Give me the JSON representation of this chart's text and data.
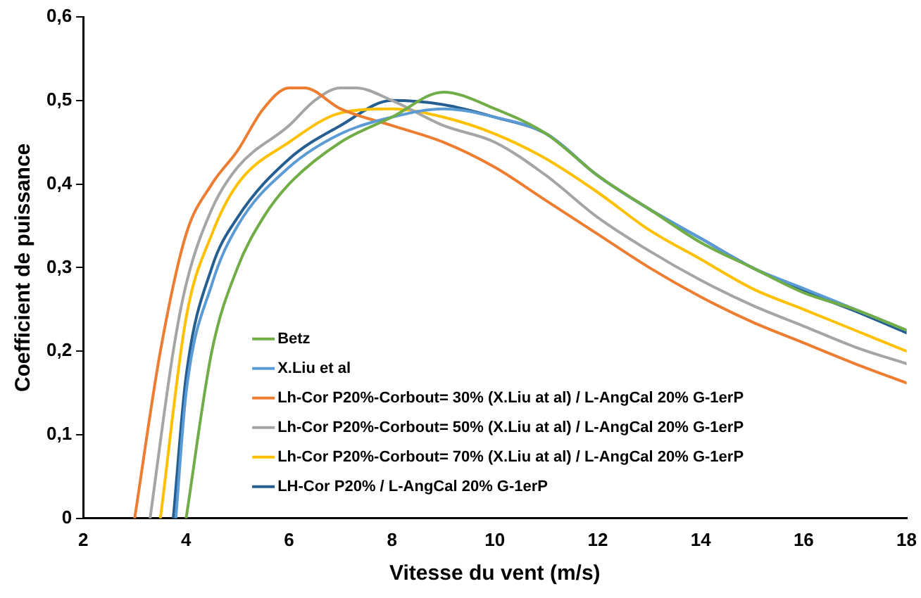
{
  "chart_data": {
    "type": "line",
    "xlabel": "Vitesse du vent (m/s)",
    "ylabel": "Coefficient de puissance",
    "xlim": [
      2,
      18
    ],
    "xticks": [
      2,
      4,
      6,
      8,
      10,
      12,
      14,
      16,
      18
    ],
    "ylim": [
      0,
      0.6
    ],
    "yticks": [
      {
        "value": 0,
        "label": "0"
      },
      {
        "value": 0.1,
        "label": "0,1"
      },
      {
        "value": 0.2,
        "label": "0,2"
      },
      {
        "value": 0.3,
        "label": "0,3"
      },
      {
        "value": 0.4,
        "label": "0,4"
      },
      {
        "value": 0.5,
        "label": "0,5"
      },
      {
        "value": 0.6,
        "label": "0,6"
      }
    ],
    "grid": false,
    "legend": "bottom",
    "marker": "none",
    "line_style": "solid",
    "series": [
      {
        "name": "Betz",
        "color": "#70ad47",
        "x": [
          4,
          4.5,
          5,
          5.5,
          6,
          7,
          8,
          9,
          10,
          11,
          12,
          13,
          14,
          15,
          16,
          17,
          18
        ],
        "values": [
          0,
          0.2,
          0.3,
          0.36,
          0.4,
          0.45,
          0.48,
          0.51,
          0.49,
          0.46,
          0.41,
          0.37,
          0.33,
          0.3,
          0.27,
          0.25,
          0.225
        ]
      },
      {
        "name": "X.Liu et al",
        "color": "#5b9bd5",
        "x": [
          3.8,
          4,
          4.5,
          5,
          6,
          7,
          8,
          9,
          10,
          11,
          12,
          13,
          14,
          15,
          16,
          17,
          18
        ],
        "values": [
          0,
          0.15,
          0.28,
          0.35,
          0.42,
          0.46,
          0.48,
          0.49,
          0.48,
          0.46,
          0.41,
          0.37,
          0.335,
          0.3,
          0.275,
          0.25,
          0.225
        ]
      },
      {
        "name": "Lh-Cor P20%-Corbout= 30% (X.Liu at al) / L-AngCal 20% G-1erP",
        "color": "#ed7d31",
        "x": [
          3,
          3.5,
          4,
          4.5,
          5,
          5.5,
          6,
          6.3,
          7,
          8,
          9,
          10,
          11,
          12,
          13,
          14,
          15,
          16,
          17,
          18
        ],
        "values": [
          0,
          0.2,
          0.34,
          0.4,
          0.44,
          0.49,
          0.515,
          0.515,
          0.49,
          0.47,
          0.45,
          0.42,
          0.38,
          0.34,
          0.3,
          0.265,
          0.235,
          0.21,
          0.185,
          0.162
        ]
      },
      {
        "name": "Lh-Cor P20%-Corbout= 50% (X.Liu at al) / L-AngCal 20% G-1erP",
        "color": "#a5a5a5",
        "x": [
          3.3,
          3.75,
          4,
          4.5,
          5,
          6,
          6.5,
          7,
          7.3,
          8,
          9,
          10,
          11,
          12,
          13,
          14,
          15,
          16,
          17,
          18
        ],
        "values": [
          0,
          0.2,
          0.28,
          0.37,
          0.42,
          0.47,
          0.5,
          0.515,
          0.515,
          0.5,
          0.47,
          0.45,
          0.41,
          0.36,
          0.32,
          0.285,
          0.255,
          0.23,
          0.205,
          0.185
        ]
      },
      {
        "name": "Lh-Cor P20%-Corbout= 70% (X.Liu at al) / L-AngCal 20% G-1erP",
        "color": "#ffc000",
        "x": [
          3.5,
          4,
          4.5,
          5,
          6,
          7,
          8,
          9,
          10,
          11,
          12,
          13,
          14,
          15,
          16,
          17,
          18
        ],
        "values": [
          0,
          0.24,
          0.34,
          0.4,
          0.45,
          0.485,
          0.49,
          0.48,
          0.46,
          0.43,
          0.39,
          0.345,
          0.31,
          0.275,
          0.25,
          0.225,
          0.2
        ]
      },
      {
        "name": "LH-Cor P20% / L-AngCal 20% G-1erP",
        "color": "#255e91",
        "x": [
          3.75,
          4,
          4.5,
          5,
          6,
          7,
          8,
          9,
          10,
          11,
          12,
          13,
          14,
          15,
          16,
          17,
          18
        ],
        "values": [
          0,
          0.17,
          0.3,
          0.36,
          0.43,
          0.47,
          0.5,
          0.495,
          0.48,
          0.46,
          0.41,
          0.37,
          0.335,
          0.3,
          0.272,
          0.248,
          0.222
        ]
      }
    ]
  }
}
